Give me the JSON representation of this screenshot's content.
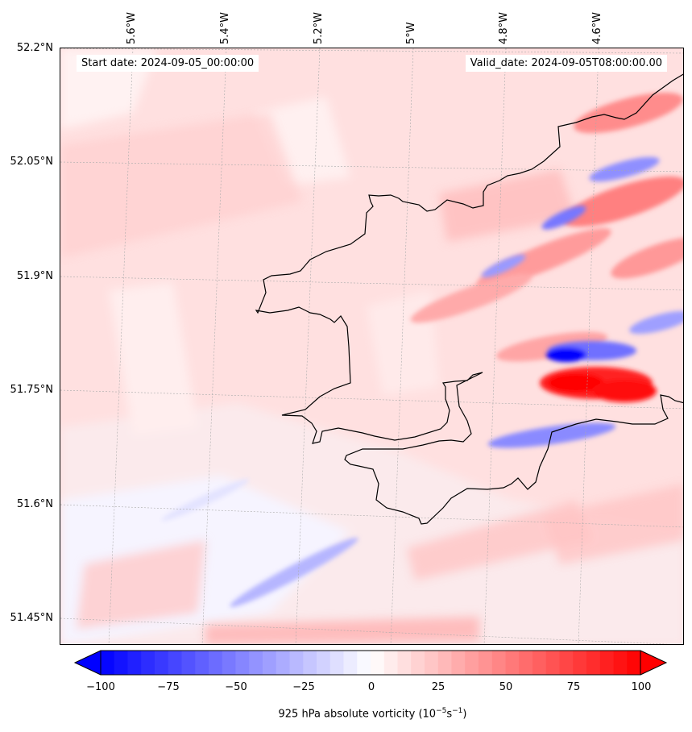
{
  "map": {
    "start_label": "Start date: 2024-09-05_00:00:00",
    "valid_label": "Valid_date: 2024-09-05T08:00:00.00",
    "lat_ticks": [
      "52.2°N",
      "52.05°N",
      "51.9°N",
      "51.75°N",
      "51.6°N",
      "51.45°N"
    ],
    "lon_ticks": [
      "5.6°W",
      "5.4°W",
      "5.2°W",
      "5°W",
      "4.8°W",
      "4.6°W"
    ],
    "field": "925 hPa absolute vorticity",
    "colormap": "bwr",
    "colors": {
      "negative_max": "#0000ff",
      "zero": "#ffffff",
      "positive_max": "#ff0000",
      "coastline": "#000000"
    }
  },
  "colorbar": {
    "ticks": [
      "−100",
      "−75",
      "−50",
      "−25",
      "0",
      "25",
      "50",
      "75",
      "100"
    ],
    "label_main": "925 hPa absolute vorticity (10",
    "label_exp1": "−5",
    "label_mid": "s",
    "label_exp2": "−1",
    "label_end": ")",
    "range": [
      -100,
      100
    ],
    "extend": "both"
  }
}
